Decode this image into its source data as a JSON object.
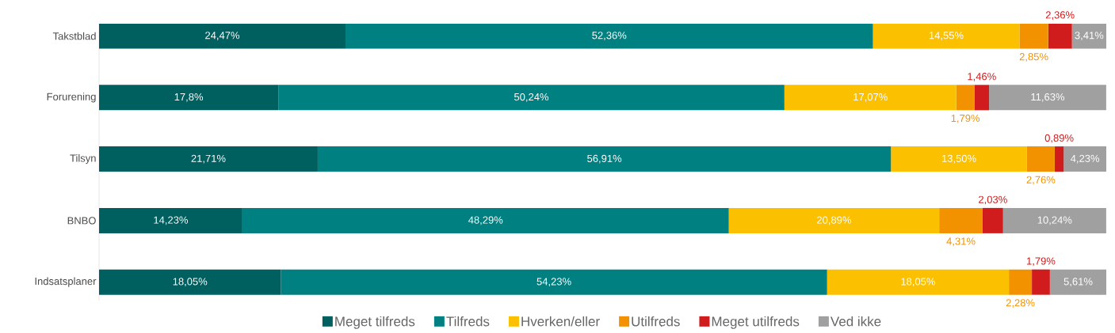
{
  "chart_data": {
    "type": "bar",
    "orientation": "horizontal",
    "stacked": true,
    "categories": [
      "Takstblad",
      "Forurening",
      "Tilsyn",
      "BNBO",
      "Indsatsplaner"
    ],
    "xlim": [
      0,
      100
    ],
    "series": [
      {
        "name": "Meget tilfreds",
        "color": "#005f5f",
        "values": [
          24.47,
          17.8,
          21.71,
          14.23,
          18.05
        ],
        "value_labels": [
          "24,47%",
          "17,8%",
          "21,71%",
          "14,23%",
          "18,05%"
        ]
      },
      {
        "name": "Tilfreds",
        "color": "#008080",
        "values": [
          52.36,
          50.24,
          56.91,
          48.29,
          54.23
        ],
        "value_labels": [
          "52,36%",
          "50,24%",
          "56,91%",
          "48,29%",
          "54,23%"
        ]
      },
      {
        "name": "Hverken/eller",
        "color": "#fbc000",
        "values": [
          14.55,
          17.07,
          13.5,
          20.89,
          18.05
        ],
        "value_labels": [
          "14,55%",
          "17,07%",
          "13,50%",
          "20,89%",
          "18,05%"
        ]
      },
      {
        "name": "Utilfreds",
        "color": "#f39200",
        "values": [
          2.85,
          1.79,
          2.76,
          4.31,
          2.28
        ],
        "value_labels": [
          "2,85%",
          "1,79%",
          "2,76%",
          "4,31%",
          "2,28%"
        ]
      },
      {
        "name": "Meget utilfreds",
        "color": "#d01c1c",
        "values": [
          2.36,
          1.46,
          0.89,
          2.03,
          1.79
        ],
        "value_labels": [
          "2,36%",
          "1,46%",
          "0,89%",
          "2,03%",
          "1,79%"
        ]
      },
      {
        "name": "Ved ikke",
        "color": "#a0a0a0",
        "values": [
          3.41,
          11.63,
          4.23,
          10.24,
          5.61
        ],
        "value_labels": [
          "3,41%",
          "11,63%",
          "4,23%",
          "10,24%",
          "5,61%"
        ]
      }
    ],
    "legend": "bottom"
  }
}
